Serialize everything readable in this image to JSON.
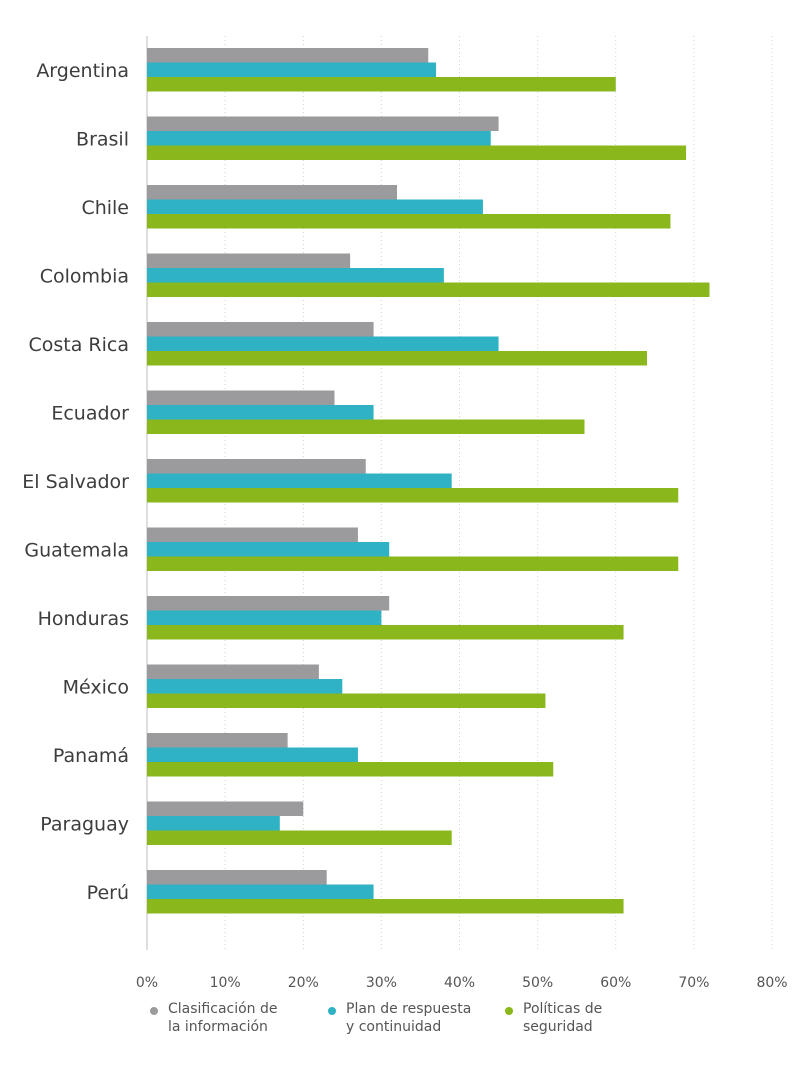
{
  "chart_data": {
    "type": "bar",
    "orientation": "horizontal",
    "categories": [
      "Argentina",
      "Brasil",
      "Chile",
      "Colombia",
      "Costa Rica",
      "Ecuador",
      "El Salvador",
      "Guatemala",
      "Honduras",
      "México",
      "Panamá",
      "Paraguay",
      "Perú"
    ],
    "series": [
      {
        "name": "Clasificación de la información",
        "name_lines": [
          "Clasificación de",
          "la información"
        ],
        "color": "#9b9b9d",
        "values": [
          36,
          45,
          32,
          26,
          29,
          24,
          28,
          27,
          31,
          22,
          18,
          20,
          23
        ]
      },
      {
        "name": "Plan de respuesta y continuidad",
        "name_lines": [
          "Plan de respuesta",
          "y continuidad"
        ],
        "color": "#2fb2c4",
        "values": [
          37,
          44,
          43,
          38,
          45,
          29,
          39,
          31,
          30,
          25,
          27,
          17,
          29
        ]
      },
      {
        "name": "Políticas de seguridad",
        "name_lines": [
          "Políticas de",
          "seguridad"
        ],
        "color": "#8ab81c",
        "values": [
          60,
          69,
          67,
          72,
          64,
          56,
          68,
          68,
          61,
          51,
          52,
          39,
          61
        ]
      }
    ],
    "xlim": [
      0,
      80
    ],
    "xticks": [
      0,
      10,
      20,
      30,
      40,
      50,
      60,
      70,
      80
    ],
    "xtick_labels": [
      "0%",
      "10%",
      "20%",
      "30%",
      "40%",
      "50%",
      "60%",
      "70%",
      "80%"
    ],
    "grid": "vertical dotted",
    "legend_position": "bottom"
  }
}
